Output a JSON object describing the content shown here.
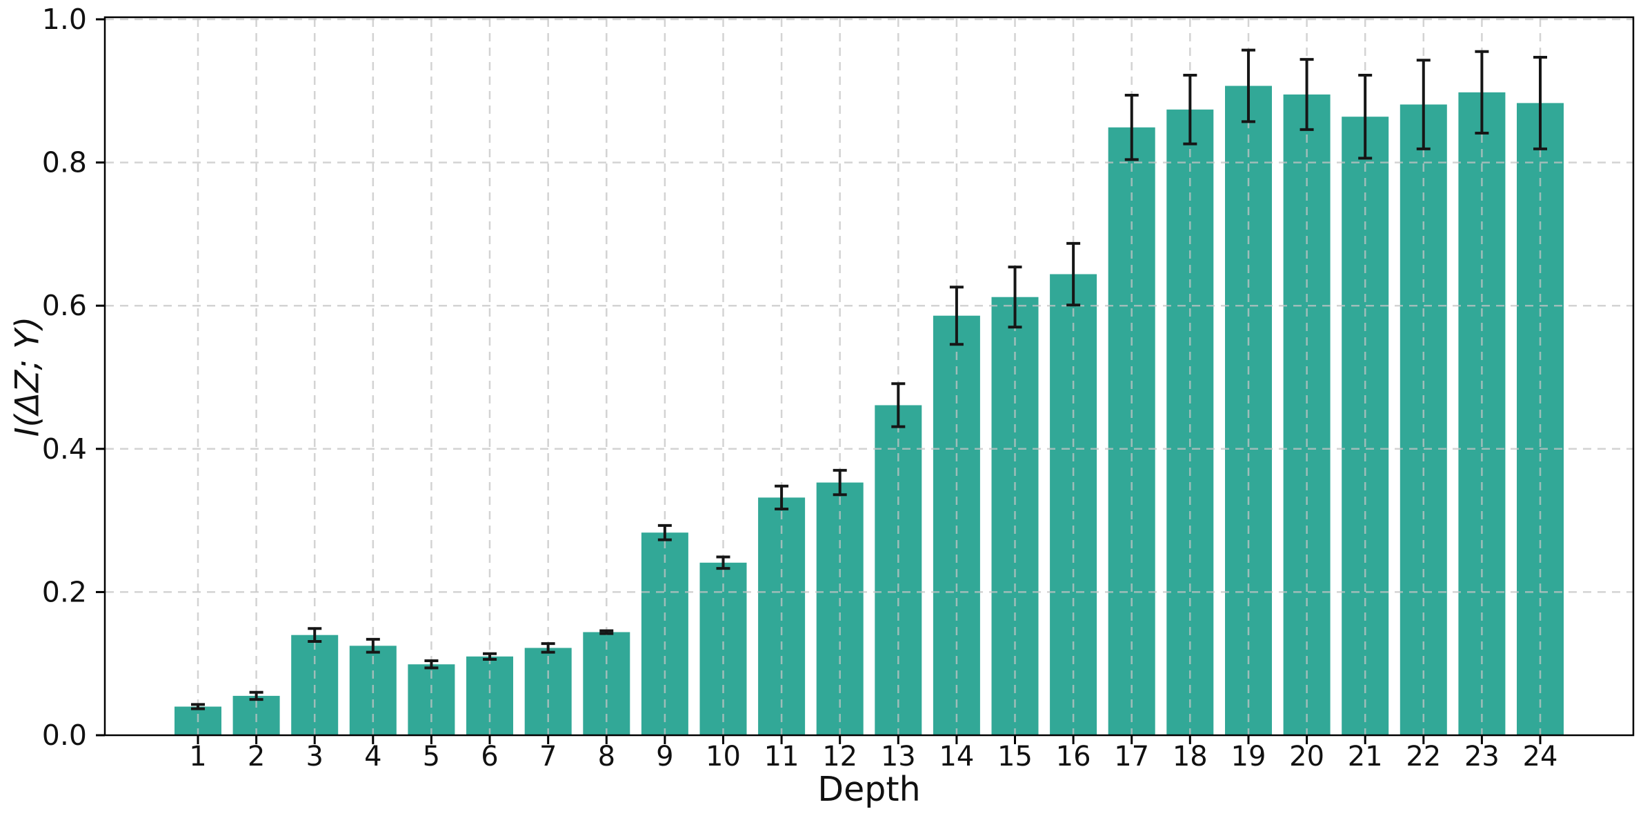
{
  "figure": {
    "background": "#ffffff"
  },
  "chart_data": {
    "type": "bar",
    "title": "",
    "xlabel": "Depth",
    "ylabel": "I(ΔZ; Y)",
    "categories": [
      "1",
      "2",
      "3",
      "4",
      "5",
      "6",
      "7",
      "8",
      "9",
      "10",
      "11",
      "12",
      "13",
      "14",
      "15",
      "16",
      "17",
      "18",
      "19",
      "20",
      "21",
      "22",
      "23",
      "24"
    ],
    "values": [
      0.04,
      0.055,
      0.14,
      0.125,
      0.099,
      0.11,
      0.122,
      0.144,
      0.283,
      0.241,
      0.332,
      0.353,
      0.461,
      0.586,
      0.612,
      0.644,
      0.849,
      0.874,
      0.907,
      0.895,
      0.864,
      0.881,
      0.898,
      0.883
    ],
    "errors": [
      0.003,
      0.005,
      0.009,
      0.009,
      0.005,
      0.004,
      0.006,
      0.002,
      0.01,
      0.008,
      0.016,
      0.017,
      0.03,
      0.04,
      0.042,
      0.043,
      0.045,
      0.048,
      0.05,
      0.049,
      0.058,
      0.062,
      0.057,
      0.064
    ],
    "ylim": [
      0.0,
      1.0
    ],
    "yticks": [
      0.0,
      0.2,
      0.4,
      0.6,
      0.8,
      1.0
    ],
    "ytick_labels": [
      "0.0",
      "0.2",
      "0.4",
      "0.6",
      "0.8",
      "1.0"
    ],
    "grid": {
      "style": "dashed",
      "axes": "both",
      "drawn_over_bars": true
    },
    "legend": "none",
    "error_caps": true,
    "colors": {
      "bar": "#32a897",
      "error": "#161616",
      "grid": "#c4c4c4",
      "axis": "#000000",
      "text": "#111111"
    }
  }
}
